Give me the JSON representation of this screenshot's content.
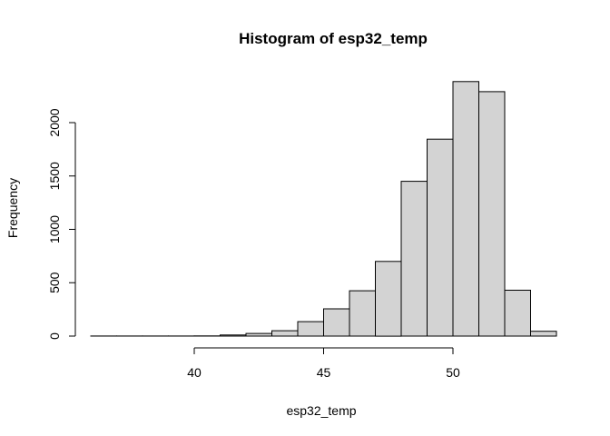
{
  "chart_data": {
    "type": "bar",
    "title": "Histogram of esp32_temp",
    "xlabel": "esp32_temp",
    "ylabel": "Frequency",
    "bin_width": 1,
    "bins": [
      {
        "x0": 36,
        "x1": 37,
        "count": 1
      },
      {
        "x0": 37,
        "x1": 38,
        "count": 1
      },
      {
        "x0": 38,
        "x1": 39,
        "count": 1
      },
      {
        "x0": 39,
        "x1": 40,
        "count": 1
      },
      {
        "x0": 40,
        "x1": 41,
        "count": 2
      },
      {
        "x0": 41,
        "x1": 42,
        "count": 10
      },
      {
        "x0": 42,
        "x1": 43,
        "count": 25
      },
      {
        "x0": 43,
        "x1": 44,
        "count": 50
      },
      {
        "x0": 44,
        "x1": 45,
        "count": 135
      },
      {
        "x0": 45,
        "x1": 46,
        "count": 255
      },
      {
        "x0": 46,
        "x1": 47,
        "count": 425
      },
      {
        "x0": 47,
        "x1": 48,
        "count": 700
      },
      {
        "x0": 48,
        "x1": 49,
        "count": 1450
      },
      {
        "x0": 49,
        "x1": 50,
        "count": 1845
      },
      {
        "x0": 50,
        "x1": 51,
        "count": 2385
      },
      {
        "x0": 51,
        "x1": 52,
        "count": 2290
      },
      {
        "x0": 52,
        "x1": 53,
        "count": 430
      },
      {
        "x0": 53,
        "x1": 54,
        "count": 45
      }
    ],
    "x_ticks": [
      40,
      45,
      50
    ],
    "y_ticks": [
      0,
      500,
      1000,
      1500,
      2000
    ],
    "xlim": [
      36,
      54
    ],
    "ylim": [
      0,
      2385
    ],
    "bar_fill": "#d3d3d3",
    "bar_stroke": "#000000",
    "grid": false,
    "legend": "none"
  }
}
